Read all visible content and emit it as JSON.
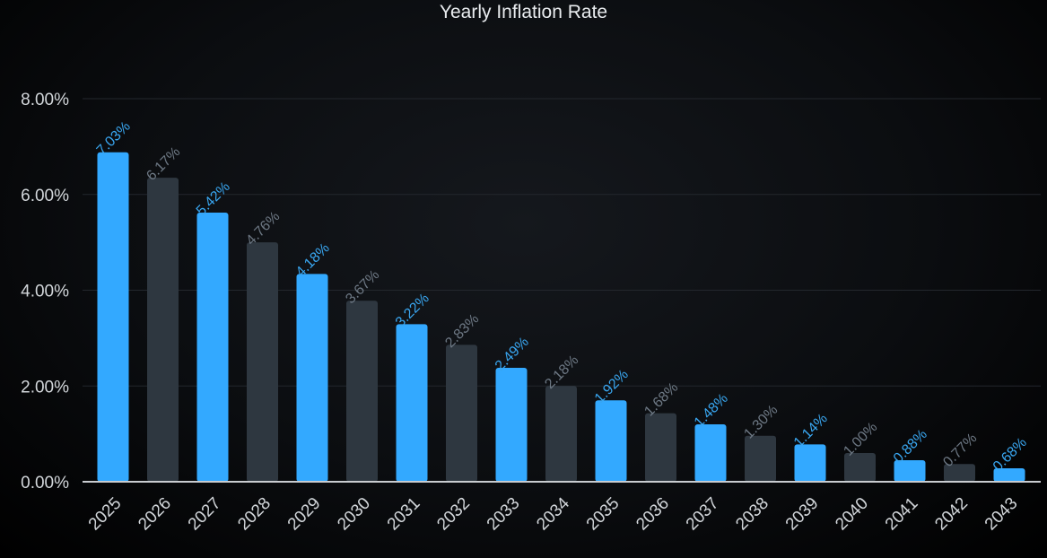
{
  "chart_data": {
    "type": "bar",
    "title": "Yearly Inflation Rate",
    "xlabel": "",
    "ylabel": "",
    "ylim": [
      0,
      8
    ],
    "yticks": [
      "0.00%",
      "2.00%",
      "4.00%",
      "6.00%",
      "8.00%"
    ],
    "ytick_values": [
      0,
      2,
      4,
      6,
      8
    ],
    "grid": true,
    "categories": [
      "2025",
      "2026",
      "2027",
      "2028",
      "2029",
      "2030",
      "2031",
      "2032",
      "2033",
      "2034",
      "2035",
      "2036",
      "2037",
      "2038",
      "2039",
      "2040",
      "2041",
      "2042",
      "2043"
    ],
    "values": [
      6.88,
      6.35,
      5.62,
      5.0,
      4.34,
      3.78,
      3.29,
      2.86,
      2.38,
      2.0,
      1.7,
      1.43,
      1.2,
      0.96,
      0.78,
      0.6,
      0.45,
      0.37,
      0.28
    ],
    "data_labels": [
      "7.03%",
      "6.17%",
      "5.42%",
      "4.76%",
      "4.18%",
      "3.67%",
      "3.22%",
      "2.83%",
      "2.49%",
      "2.18%",
      "1.92%",
      "1.68%",
      "1.48%",
      "1.30%",
      "1.14%",
      "1.00%",
      "0.88%",
      "0.77%",
      "0.68%"
    ],
    "colors": {
      "primary_bar": "#33a9ff",
      "secondary_bar": "#2e3740",
      "primary_label": "#39a6f0",
      "secondary_label": "#6d7884",
      "axis_text": "#d2d6da",
      "grid": "#23272d",
      "baseline": "#c9ccd0"
    }
  }
}
